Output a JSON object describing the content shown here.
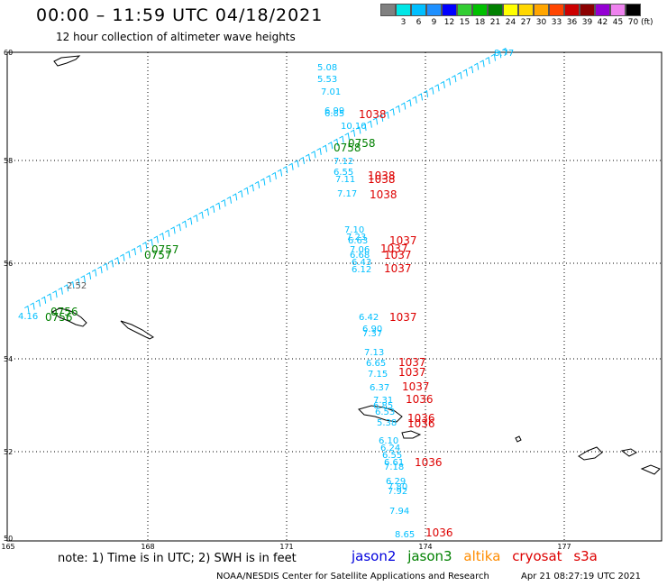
{
  "header": {
    "title": "00:00 – 11:59 UTC 04/18/2021",
    "subtitle": "12 hour collection of altimeter wave heights"
  },
  "scale": {
    "unit": "(ft)",
    "items": [
      {
        "label": "",
        "color": "#808080"
      },
      {
        "label": "3",
        "color": "#00e6e6"
      },
      {
        "label": "6",
        "color": "#00bfff"
      },
      {
        "label": "9",
        "color": "#1e90ff"
      },
      {
        "label": "12",
        "color": "#0000ff"
      },
      {
        "label": "15",
        "color": "#32cd32"
      },
      {
        "label": "18",
        "color": "#00c000"
      },
      {
        "label": "21",
        "color": "#008000"
      },
      {
        "label": "24",
        "color": "#ffff00"
      },
      {
        "label": "27",
        "color": "#ffd700"
      },
      {
        "label": "30",
        "color": "#ffa500"
      },
      {
        "label": "33",
        "color": "#ff4500"
      },
      {
        "label": "36",
        "color": "#cc0000"
      },
      {
        "label": "39",
        "color": "#8b0000"
      },
      {
        "label": "42",
        "color": "#9400d3"
      },
      {
        "label": "45",
        "color": "#ee82ee"
      },
      {
        "label": "70",
        "color": "#000000"
      }
    ]
  },
  "axes": {
    "lat_labels": [
      "60",
      "58",
      "56",
      "54",
      "52",
      "50"
    ],
    "lon_labels": [
      "165",
      "168",
      "171",
      "174",
      "177"
    ]
  },
  "map": {
    "ascending_track_start_label": "4.16",
    "ascending_track_end_label": "8.77",
    "track_mid_label": "2.52",
    "time_labels": [
      {
        "text": "0756",
        "color": "#008000"
      },
      {
        "text": "0757",
        "color": "#008000"
      },
      {
        "text": "0758",
        "color": "#008000"
      },
      {
        "text": "1038",
        "color": "#dd0000"
      },
      {
        "text": "1037",
        "color": "#dd0000"
      },
      {
        "text": "1036",
        "color": "#dd0000"
      }
    ],
    "north_values": [
      "5.08",
      "5.53",
      "7.01",
      "6.99",
      "6.85",
      "10.10",
      "7.12",
      "6.55",
      "7.11",
      "7.17"
    ],
    "mid_values": [
      "7.10",
      "7.23",
      "6.63",
      "7.06",
      "6.68",
      "6.43",
      "6.12"
    ],
    "south_values": [
      "6.42",
      "6.90",
      "7.37",
      "7.13",
      "6.65",
      "7.15",
      "6.37",
      "7.31",
      "6.85",
      "6.53",
      "5.38",
      "6.10",
      "6.24",
      "6.55",
      "6.61",
      "7.18",
      "6.29",
      "7.80",
      "7.92",
      "7.94",
      "8.65"
    ],
    "red_labels": [
      "1038",
      "1038",
      "1038",
      "1038",
      "1037",
      "1037",
      "1037",
      "1037",
      "1037",
      "1037",
      "1037",
      "1037",
      "1036",
      "1036",
      "1036",
      "1036",
      "1036"
    ]
  },
  "footer": {
    "note": "note:  1) Time is in UTC;  2) SWH is in feet",
    "legend": [
      {
        "name": "jason2",
        "color": "#0000dd"
      },
      {
        "name": "jason3",
        "color": "#008000"
      },
      {
        "name": "altika",
        "color": "#ff8c00"
      },
      {
        "name": "cryosat",
        "color": "#dd0000"
      },
      {
        "name": "s3a",
        "color": "#dd0000"
      }
    ],
    "credit": "NOAA/NESDIS Center for Satellite Applications and Research",
    "timestamp": "Apr 21 08:27:19 UTC 2021"
  }
}
